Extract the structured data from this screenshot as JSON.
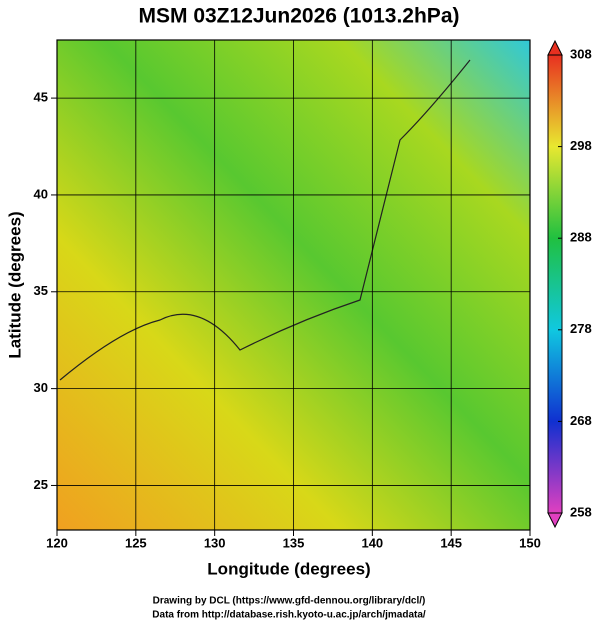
{
  "chart_data": {
    "type": "map",
    "title": "MSM 03Z12Jun2026 (1013.2hPa)",
    "x_label": "Longitude (degrees)",
    "y_label": "Latitude  (degrees)",
    "xlim": [
      120,
      150
    ],
    "xticks": [
      120,
      125,
      130,
      135,
      140,
      145,
      150
    ],
    "ylim": [
      22.7,
      48
    ],
    "yticks": [
      25,
      30,
      35,
      40,
      45
    ],
    "grid": true,
    "colorbar": {
      "lim": [
        258,
        308
      ],
      "ticks": [
        258,
        268,
        278,
        288,
        298,
        308
      ],
      "colors": [
        "#e040c0",
        "#1030d0",
        "#10c8e0",
        "#20c040",
        "#e8e830",
        "#e83020"
      ]
    },
    "footer": [
      "Drawing by DCL (https://www.gfd-dennou.org/library/dcl/)",
      "Data from http://database.rish.kyoto-u.ac.jp/arch/jmadata/"
    ]
  }
}
